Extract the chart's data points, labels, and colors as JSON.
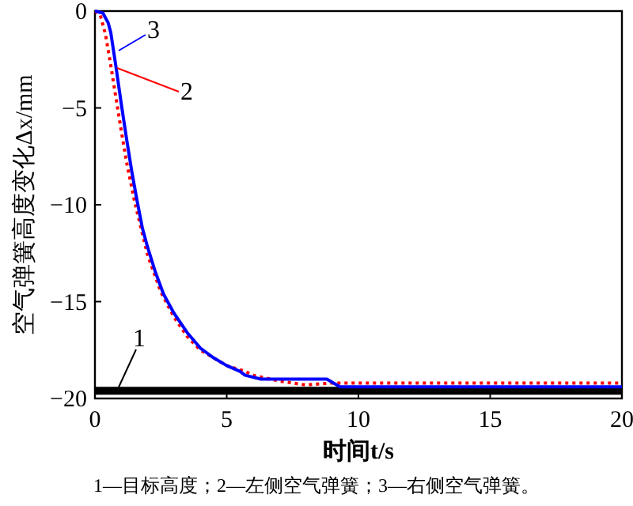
{
  "chart_data": {
    "type": "line",
    "xlabel": "时间t/s",
    "ylabel": "空气弹簧高度变化Δx/mm",
    "xlim": [
      0,
      20
    ],
    "ylim": [
      -20,
      0
    ],
    "xticks": [
      0,
      5,
      10,
      15,
      20
    ],
    "yticks": [
      0,
      {
        "value": -5,
        "label": "−5"
      },
      {
        "value": -10,
        "label": "−10"
      },
      {
        "value": -15,
        "label": "−15"
      },
      {
        "value": -20,
        "label": "−20"
      }
    ],
    "marker": "none",
    "grid": false,
    "legend": "top left",
    "annotations": [
      "1—目标高度；2—左侧空气弹簧；3—右侧空气弹簧。"
    ],
    "series": [
      {
        "name": "1",
        "color": "#000000",
        "line_style": "solid",
        "x": [
          0,
          20
        ],
        "values": [
          -19.6,
          -19.6
        ]
      },
      {
        "name": "2",
        "color": "#ff0000",
        "line_style": "dotted",
        "x": [
          0,
          0.2,
          0.4,
          0.6,
          0.8,
          1.0,
          1.2,
          1.5,
          1.8,
          2.0,
          2.5,
          3,
          3.5,
          4,
          5,
          5.7,
          6,
          7,
          8,
          9,
          10,
          20
        ],
        "values": [
          0,
          -0.2,
          -1.2,
          -2.8,
          -4.5,
          -6.2,
          -7.8,
          -9.8,
          -11.5,
          -12.6,
          -14.5,
          -15.8,
          -16.8,
          -17.5,
          -18.3,
          -18.6,
          -18.8,
          -19.1,
          -19.3,
          -19.2,
          -19.2,
          -19.2
        ]
      },
      {
        "name": "3",
        "color": "#0000ff",
        "line_style": "solid",
        "x": [
          0,
          0.3,
          0.5,
          0.6,
          0.8,
          1.0,
          1.2,
          1.4,
          1.6,
          1.8,
          2.0,
          2.3,
          2.6,
          3,
          3.5,
          4,
          4.5,
          5,
          5.5,
          5.7,
          6.3,
          8.8,
          9.3,
          20
        ],
        "values": [
          0,
          -0.1,
          -0.6,
          -1.1,
          -2.9,
          -4.8,
          -6.6,
          -8.3,
          -9.8,
          -11.2,
          -12.2,
          -13.5,
          -14.6,
          -15.6,
          -16.6,
          -17.4,
          -17.9,
          -18.3,
          -18.6,
          -18.8,
          -19.0,
          -19.0,
          -19.4,
          -19.4
        ]
      }
    ]
  }
}
